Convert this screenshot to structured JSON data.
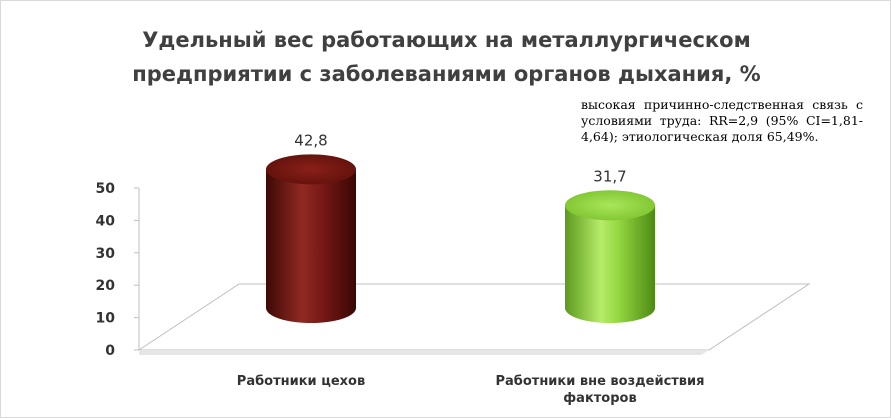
{
  "chart_data": {
    "type": "bar",
    "title_lines": [
      "Удельный вес работающих  на металлургическом",
      "предприятии с заболеваниями органов дыхания, %"
    ],
    "categories": [
      [
        "Работники цехов"
      ],
      [
        "Работники вне воздействия",
        "факторов"
      ]
    ],
    "values": [
      42.8,
      31.7
    ],
    "value_labels": [
      "42,8",
      "31,7"
    ],
    "ylim": [
      0,
      50
    ],
    "yticks": [
      0,
      10,
      20,
      30,
      40,
      50
    ],
    "grid": false,
    "colors": [
      "#7a1a16",
      "#8fd13a"
    ]
  },
  "annotation": "высокая причинно-следственная связь с условиями труда: RR=2,9 (95% CI=1,81-4,64); этиологическая доля 65,49%."
}
